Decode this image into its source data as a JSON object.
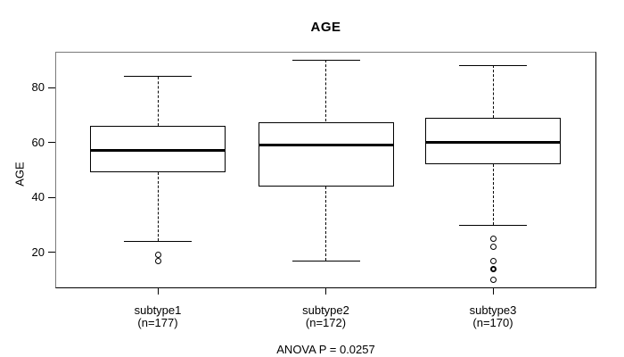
{
  "figure": {
    "background": "#ffffff",
    "text_color": "#000000"
  },
  "chart_data": {
    "type": "boxplot",
    "title": "AGE",
    "ylabel": "AGE",
    "xlabel": "",
    "annotation": "ANOVA P = 0.0257",
    "ylim": [
      7,
      93
    ],
    "yticks": [
      20,
      40,
      60,
      80
    ],
    "grid": false,
    "legend": null,
    "groups": [
      {
        "label": "subtype1",
        "sublabel": "(n=177)",
        "n": 177,
        "whisker_low": 24,
        "q1": 49,
        "median": 57,
        "q3": 66,
        "whisker_high": 84,
        "outliers": [
          19,
          17
        ]
      },
      {
        "label": "subtype2",
        "sublabel": "(n=172)",
        "n": 172,
        "whisker_low": 17,
        "q1": 44,
        "median": 59,
        "q3": 67.5,
        "whisker_high": 90,
        "outliers": []
      },
      {
        "label": "subtype3",
        "sublabel": "(n=170)",
        "n": 170,
        "whisker_low": 30,
        "q1": 52,
        "median": 60,
        "q3": 69,
        "whisker_high": 88,
        "outliers": [
          25,
          22,
          17,
          14,
          10
        ],
        "emphasized_outlier": 14
      }
    ],
    "colors": {
      "background": "#ffffff",
      "text": "#000000",
      "box_border": "#000000",
      "median": "#000000",
      "whisker": "#000000",
      "frame_top_left": "#7a7a7a",
      "frame_bottom_right": "#000000"
    }
  }
}
